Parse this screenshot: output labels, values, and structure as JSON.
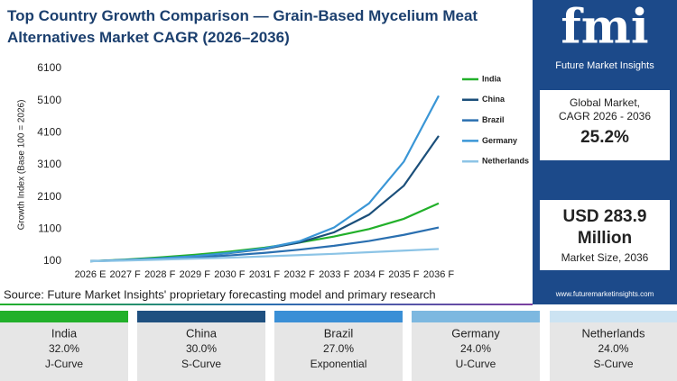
{
  "chart_data": {
    "type": "line",
    "title": "Top Country Growth Comparison — Grain-Based Mycelium Meat Alternatives Market CAGR (2026–2036)",
    "y_label": "Growth Index (Base 100 = 2026)",
    "categories": [
      "2026 E",
      "2027 F",
      "2028 F",
      "2029 F",
      "2030 F",
      "2031 F",
      "2032 F",
      "2033 F",
      "2034 F",
      "2035 F",
      "2036 F"
    ],
    "series": [
      {
        "name": "India",
        "color": "#22b02a",
        "values": [
          100,
          150,
          220,
          300,
          400,
          520,
          680,
          870,
          1100,
          1420,
          1900
        ]
      },
      {
        "name": "China",
        "color": "#1b4f7a",
        "values": [
          100,
          140,
          190,
          260,
          350,
          480,
          680,
          1000,
          1550,
          2450,
          4000
        ]
      },
      {
        "name": "Brazil",
        "color": "#2a6fb0",
        "values": [
          100,
          130,
          170,
          220,
          280,
          360,
          460,
          580,
          730,
          920,
          1150
        ]
      },
      {
        "name": "Germany",
        "color": "#3a96d6",
        "values": [
          100,
          140,
          190,
          260,
          360,
          500,
          720,
          1150,
          1900,
          3200,
          5250
        ]
      },
      {
        "name": "Netherlands",
        "color": "#8cc4e6",
        "values": [
          100,
          120,
          150,
          180,
          210,
          250,
          290,
          330,
          380,
          430,
          480
        ]
      }
    ],
    "ylim": [
      100,
      6100
    ],
    "yticks": [
      100,
      1100,
      2100,
      3100,
      4100,
      5100,
      6100
    ],
    "grid": false,
    "legend": "top-right"
  },
  "source": "Source: Future Market Insights' proprietary forecasting model and primary research",
  "brand": {
    "logo": "fmi",
    "name": "Future Market Insights",
    "url": "www.futuremarketinsights.com"
  },
  "side_panel": {
    "cagr_label_1": "Global Market,",
    "cagr_label_2": "CAGR 2026 - 2036",
    "cagr": "25.2%",
    "size_1": "USD 283.9",
    "size_2": "Million",
    "size_label": "Market Size, 2036"
  },
  "summary_cards": [
    {
      "country": "India",
      "cagr": "32.0%",
      "curve": "J-Curve",
      "color": "#22b02a"
    },
    {
      "country": "China",
      "cagr": "30.0%",
      "curve": "S-Curve",
      "color": "#1f5080"
    },
    {
      "country": "Brazil",
      "cagr": "27.0%",
      "curve": "Exponential",
      "color": "#3a8fd6"
    },
    {
      "country": "Germany",
      "cagr": "24.0%",
      "curve": "U-Curve",
      "color": "#7db8e0"
    },
    {
      "country": "Netherlands",
      "cagr": "24.0%",
      "curve": "S-Curve",
      "color": "#cce3f2"
    }
  ]
}
